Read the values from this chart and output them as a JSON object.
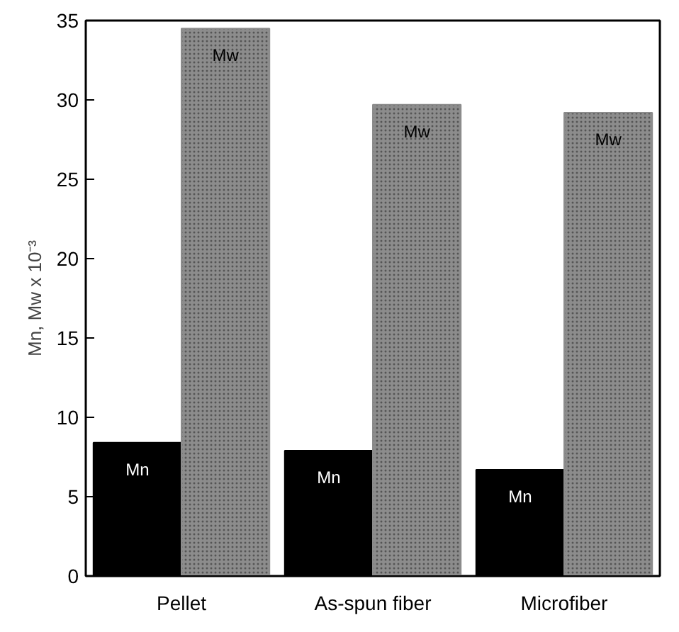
{
  "chart_data": {
    "type": "bar",
    "ylabel": "Mn, Mw x 10⁻³",
    "categories": [
      "Pellet",
      "As-spun fiber",
      "Microfiber"
    ],
    "series": [
      {
        "name": "Mn",
        "color": "#000000",
        "values": [
          8.4,
          7.9,
          6.7
        ]
      },
      {
        "name": "Mw",
        "color": "#8c8c8c",
        "values": [
          34.5,
          29.7,
          29.2
        ]
      }
    ],
    "ylim": [
      0,
      35
    ],
    "yticks": [
      0,
      5,
      10,
      15,
      20,
      25,
      30,
      35
    ],
    "grid": false
  }
}
